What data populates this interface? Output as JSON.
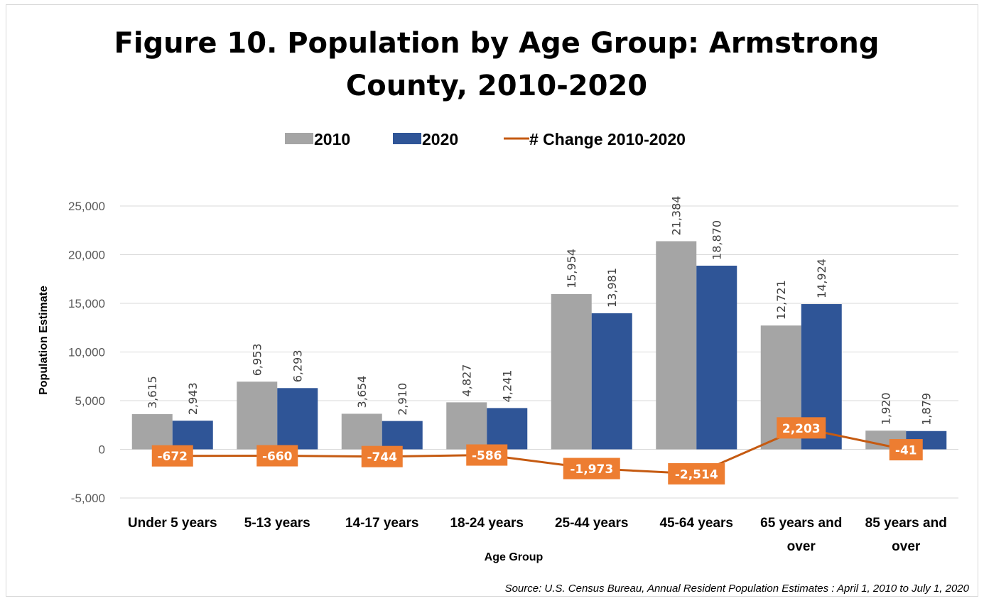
{
  "chart_data": {
    "type": "bar",
    "title": "Figure 10. Population by Age Group: Armstrong County, 2010-2020",
    "title_lines": [
      "Figure 10. Population by Age Group: Armstrong",
      "County, 2010-2020"
    ],
    "xlabel": "Age Group",
    "ylabel": "Population Estimate",
    "ylim": [
      -5000,
      25000
    ],
    "yticks": [
      -5000,
      0,
      5000,
      10000,
      15000,
      20000,
      25000
    ],
    "ytick_labels": [
      "-5,000",
      "0",
      "5,000",
      "10,000",
      "15,000",
      "20,000",
      "25,000"
    ],
    "grid": true,
    "legend_position": "top",
    "categories": [
      "Under 5 years",
      "5-13 years",
      "14-17 years",
      "18-24 years",
      "25-44 years",
      "45-64 years",
      "65 years and over",
      "85 years and over"
    ],
    "category_lines": [
      [
        "Under 5 years"
      ],
      [
        "5-13 years"
      ],
      [
        "14-17 years"
      ],
      [
        "18-24 years"
      ],
      [
        "25-44 years"
      ],
      [
        "45-64 years"
      ],
      [
        "65 years and",
        "over"
      ],
      [
        "85 years and",
        "over"
      ]
    ],
    "series": [
      {
        "name": "2010",
        "kind": "bar",
        "color": "#a5a5a5",
        "values": [
          3615,
          6953,
          3654,
          4827,
          15954,
          21384,
          12721,
          1920
        ],
        "labels": [
          "3,615",
          "6,953",
          "3,654",
          "4,827",
          "15,954",
          "21,384",
          "12,721",
          "1,920"
        ]
      },
      {
        "name": "2020",
        "kind": "bar",
        "color": "#2f5597",
        "values": [
          2943,
          6293,
          2910,
          4241,
          13981,
          18870,
          14924,
          1879
        ],
        "labels": [
          "2,943",
          "6,293",
          "2,910",
          "4,241",
          "13,981",
          "18,870",
          "14,924",
          "1,879"
        ]
      },
      {
        "name": "# Change 2010-2020",
        "kind": "line",
        "color": "#c55a11",
        "label_bg": "#ed7d31",
        "values": [
          -672,
          -660,
          -744,
          -586,
          -1973,
          -2514,
          2203,
          -41
        ],
        "labels": [
          "-672",
          "-660",
          "-744",
          "-586",
          "-1,973",
          "-2,514",
          "2,203",
          "-41"
        ]
      }
    ],
    "source": "Source: U.S. Census Bureau, Annual Resident Population Estimates : April 1, 2010 to July 1, 2020"
  }
}
